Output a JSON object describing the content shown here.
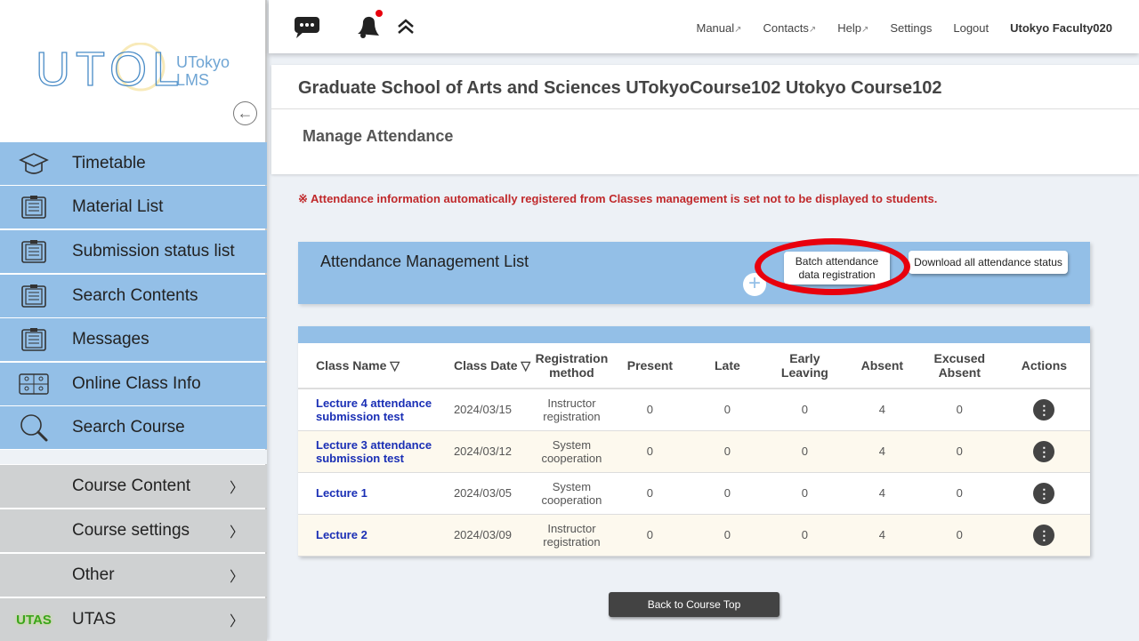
{
  "logo": {
    "text": "UTOL",
    "sub1": "UTokyo",
    "sub2": "LMS"
  },
  "sidebar": {
    "items": [
      {
        "label": "Timetable",
        "icon": "graduation-cap-icon"
      },
      {
        "label": "Material List",
        "icon": "clipboard-icon"
      },
      {
        "label": "Submission status list",
        "icon": "clipboard-icon"
      },
      {
        "label": "Search Contents",
        "icon": "clipboard-icon"
      },
      {
        "label": "Messages",
        "icon": "clipboard-icon"
      },
      {
        "label": "Online Class Info",
        "icon": "video-grid-icon"
      },
      {
        "label": "Search Course",
        "icon": "search-icon"
      }
    ],
    "groups": [
      {
        "label": "Course Content"
      },
      {
        "label": "Course settings"
      },
      {
        "label": "Other"
      },
      {
        "label": "UTAS"
      }
    ],
    "arrow": "〉"
  },
  "topbar": {
    "links": [
      "Manual",
      "Contacts",
      "Help",
      "Settings",
      "Logout"
    ],
    "user": "Utokyo Faculty020",
    "notification_color": "#e8000d"
  },
  "course_title": "Graduate School of Arts and Sciences UTokyoCourse102 Utokyo Course102",
  "page_title": "Manage Attendance",
  "notice": "※ Attendance information automatically registered from Classes management is set not to be displayed to students.",
  "panel": {
    "title": "Attendance Management List",
    "batch_line1": "Batch attendance",
    "batch_line2": "data registration",
    "download": "Download all attendance status"
  },
  "table": {
    "headers": [
      "Class Name ▽",
      "Class Date ▽",
      "Registration method",
      "Present",
      "Late",
      "Early Leaving",
      "Absent",
      "Excused Absent",
      "Actions"
    ],
    "rows": [
      {
        "name": "Lecture 4 attendance submission test",
        "date": "2024/03/15",
        "method": "Instructor registration",
        "present": "0",
        "late": "0",
        "early": "0",
        "absent": "4",
        "excused": "0"
      },
      {
        "name": "Lecture 3 attendance submission test",
        "date": "2024/03/12",
        "method": "System cooperation",
        "present": "0",
        "late": "0",
        "early": "0",
        "absent": "4",
        "excused": "0"
      },
      {
        "name": "Lecture 1",
        "date": "2024/03/05",
        "method": "System cooperation",
        "present": "0",
        "late": "0",
        "early": "0",
        "absent": "4",
        "excused": "0"
      },
      {
        "name": "Lecture 2",
        "date": "2024/03/09",
        "method": "Instructor registration",
        "present": "0",
        "late": "0",
        "early": "0",
        "absent": "4",
        "excused": "0"
      }
    ]
  },
  "back_button": "Back to Course Top",
  "colors": {
    "accent": "#93bfe7",
    "link": "#1a2fb5",
    "notice": "#c0292b",
    "highlight": "#e8000d"
  }
}
